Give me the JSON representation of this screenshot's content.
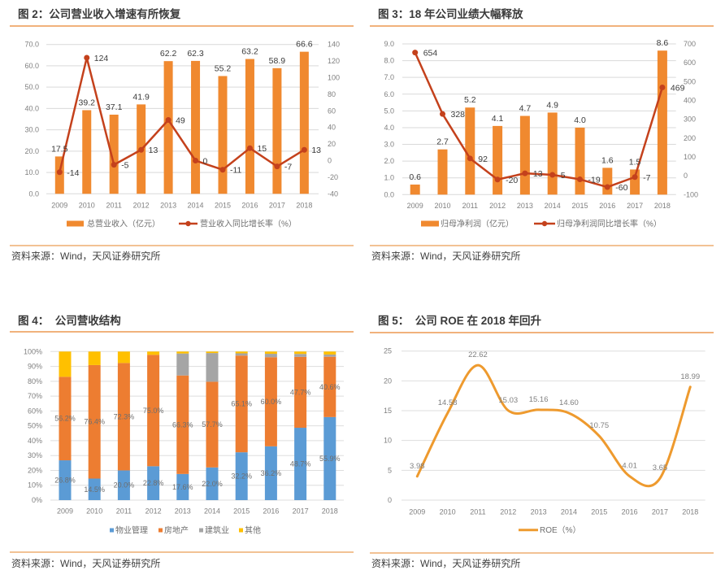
{
  "panels": [
    {
      "source": "资料来源：Wind，天风证券研究所"
    },
    {
      "source": "资料来源：Wind，天风证券研究所"
    },
    {
      "source": "资料来源：Wind，天风证券研究所"
    },
    {
      "source": "资料来源：Wind，天风证券研究所"
    }
  ],
  "chart_data": [
    {
      "type": "bar",
      "title": "图 2：公司营业收入增速有所恢复",
      "categories": [
        "2009",
        "2010",
        "2011",
        "2012",
        "2013",
        "2014",
        "2015",
        "2016",
        "2017",
        "2018"
      ],
      "series": [
        {
          "name": "总营业收入（亿元）",
          "type": "bar",
          "axis": "left",
          "color": "#F0892F",
          "values": [
            17.5,
            39.2,
            37.1,
            41.9,
            62.2,
            62.3,
            55.2,
            63.2,
            58.9,
            66.6
          ],
          "labels": [
            "17.5",
            "39.2",
            "37.1",
            "41.9",
            "62.2",
            "62.3",
            "55.2",
            "63.2",
            "58.9",
            "66.6"
          ]
        },
        {
          "name": "营业收入同比增长率（%）",
          "type": "line",
          "axis": "right",
          "color": "#C4411C",
          "marker": "circle",
          "values": [
            -14,
            124,
            -5,
            13,
            49,
            0,
            -11,
            15,
            -7,
            13
          ],
          "labels": [
            "-14",
            "124",
            "-5",
            "13",
            "49",
            "0",
            "-11",
            "15",
            "-7",
            "13"
          ]
        }
      ],
      "y_left": {
        "range": [
          0,
          70
        ],
        "ticks": [
          0,
          10,
          20,
          30,
          40,
          50,
          60,
          70
        ],
        "tick_labels": [
          "0.0",
          "10.0",
          "20.0",
          "30.0",
          "40.0",
          "50.0",
          "60.0",
          "70.0"
        ]
      },
      "y_right": {
        "range": [
          -40,
          140
        ],
        "ticks": [
          -40,
          -20,
          0,
          20,
          40,
          60,
          80,
          100,
          120,
          140
        ],
        "tick_labels": [
          "-40",
          "-20",
          "0",
          "20",
          "40",
          "60",
          "80",
          "100",
          "120",
          "140"
        ]
      },
      "xlabel": "",
      "ylabel": "",
      "grid": true,
      "legend": "bottom"
    },
    {
      "type": "bar",
      "title": "图 3：18 年公司业绩大幅释放",
      "categories": [
        "2009",
        "2010",
        "2011",
        "2012",
        "2013",
        "2014",
        "2015",
        "2016",
        "2017",
        "2018"
      ],
      "series": [
        {
          "name": "归母净利润（亿元）",
          "type": "bar",
          "axis": "left",
          "color": "#F0892F",
          "values": [
            0.6,
            2.7,
            5.2,
            4.1,
            4.7,
            4.9,
            4.0,
            1.6,
            1.5,
            8.6
          ],
          "labels": [
            "0.6",
            "2.7",
            "5.2",
            "4.1",
            "4.7",
            "4.9",
            "4.0",
            "1.6",
            "1.5",
            "8.6"
          ]
        },
        {
          "name": "归母净利润同比增长率（%）",
          "type": "line",
          "axis": "right",
          "color": "#C4411C",
          "marker": "circle",
          "values": [
            654,
            328,
            92,
            -20,
            13,
            5,
            -19,
            -60,
            -7,
            469
          ],
          "labels": [
            "654",
            "328",
            "92",
            "-20",
            "13",
            "5",
            "-19",
            "-60",
            "-7",
            "469"
          ]
        }
      ],
      "y_left": {
        "range": [
          0,
          9
        ],
        "ticks": [
          0,
          1,
          2,
          3,
          4,
          5,
          6,
          7,
          8,
          9
        ],
        "tick_labels": [
          "0.0",
          "1.0",
          "2.0",
          "3.0",
          "4.0",
          "5.0",
          "6.0",
          "7.0",
          "8.0",
          "9.0"
        ]
      },
      "y_right": {
        "range": [
          -100,
          700
        ],
        "ticks": [
          -100,
          0,
          100,
          200,
          300,
          400,
          500,
          600,
          700
        ],
        "tick_labels": [
          "-100",
          "0",
          "100",
          "200",
          "300",
          "400",
          "500",
          "600",
          "700"
        ]
      },
      "xlabel": "",
      "ylabel": "",
      "grid": true,
      "legend": "bottom"
    },
    {
      "type": "bar",
      "stacked": true,
      "title": "图 4：  公司营收结构",
      "categories": [
        "2009",
        "2010",
        "2011",
        "2012",
        "2013",
        "2014",
        "2015",
        "2016",
        "2017",
        "2018"
      ],
      "series": [
        {
          "name": "物业管理",
          "color": "#5B9BD5",
          "values": [
            26.8,
            14.5,
            20.0,
            22.8,
            17.6,
            22.0,
            32.2,
            36.2,
            48.7,
            55.9
          ],
          "labels": [
            "26.8%",
            "14.5%",
            "20.0%",
            "22.8%",
            "17.6%",
            "22.0%",
            "32.2%",
            "36.2%",
            "48.7%",
            "55.9%"
          ]
        },
        {
          "name": "房地产",
          "color": "#ED7D31",
          "values": [
            56.2,
            76.4,
            72.3,
            75.0,
            66.3,
            57.7,
            65.1,
            60.0,
            47.7,
            40.6
          ],
          "labels": [
            "56.2%",
            "76.4%",
            "72.3%",
            "75.0%",
            "66.3%",
            "57.7%",
            "65.1%",
            "60.0%",
            "47.7%",
            "40.6%"
          ]
        },
        {
          "name": "建筑业",
          "color": "#A5A5A5",
          "values": [
            0,
            0,
            0,
            0,
            14.8,
            19.3,
            1.5,
            2.3,
            2.0,
            1.5
          ]
        },
        {
          "name": "其他",
          "color": "#FFC000",
          "values": [
            17.0,
            9.1,
            7.7,
            2.2,
            1.3,
            1.0,
            1.2,
            1.5,
            1.6,
            2.0
          ]
        }
      ],
      "y": {
        "range": [
          0,
          100
        ],
        "ticks": [
          0,
          10,
          20,
          30,
          40,
          50,
          60,
          70,
          80,
          90,
          100
        ],
        "tick_labels": [
          "0%",
          "10%",
          "20%",
          "30%",
          "40%",
          "50%",
          "60%",
          "70%",
          "80%",
          "90%",
          "100%"
        ]
      },
      "xlabel": "",
      "ylabel": "",
      "grid": true,
      "legend": "bottom"
    },
    {
      "type": "line",
      "smooth": true,
      "title": "图 5：  公司 ROE 在 2018 年回升",
      "categories": [
        "2009",
        "2010",
        "2011",
        "2012",
        "2013",
        "2014",
        "2015",
        "2016",
        "2017",
        "2018"
      ],
      "series": [
        {
          "name": "ROE（%）",
          "color": "#EE9A2E",
          "values": [
            3.98,
            14.58,
            22.62,
            15.03,
            15.16,
            14.6,
            10.75,
            4.01,
            3.65,
            18.99
          ],
          "labels": [
            "3.98",
            "14.58",
            "22.62",
            "15.03",
            "15.16",
            "14.60",
            "10.75",
            "4.01",
            "3.65",
            "18.99"
          ]
        }
      ],
      "y": {
        "range": [
          0,
          25
        ],
        "ticks": [
          0,
          5,
          10,
          15,
          20,
          25
        ],
        "tick_labels": [
          "0",
          "5",
          "10",
          "15",
          "20",
          "25"
        ]
      },
      "xlabel": "",
      "ylabel": "",
      "grid": true,
      "legend": "bottom"
    }
  ]
}
